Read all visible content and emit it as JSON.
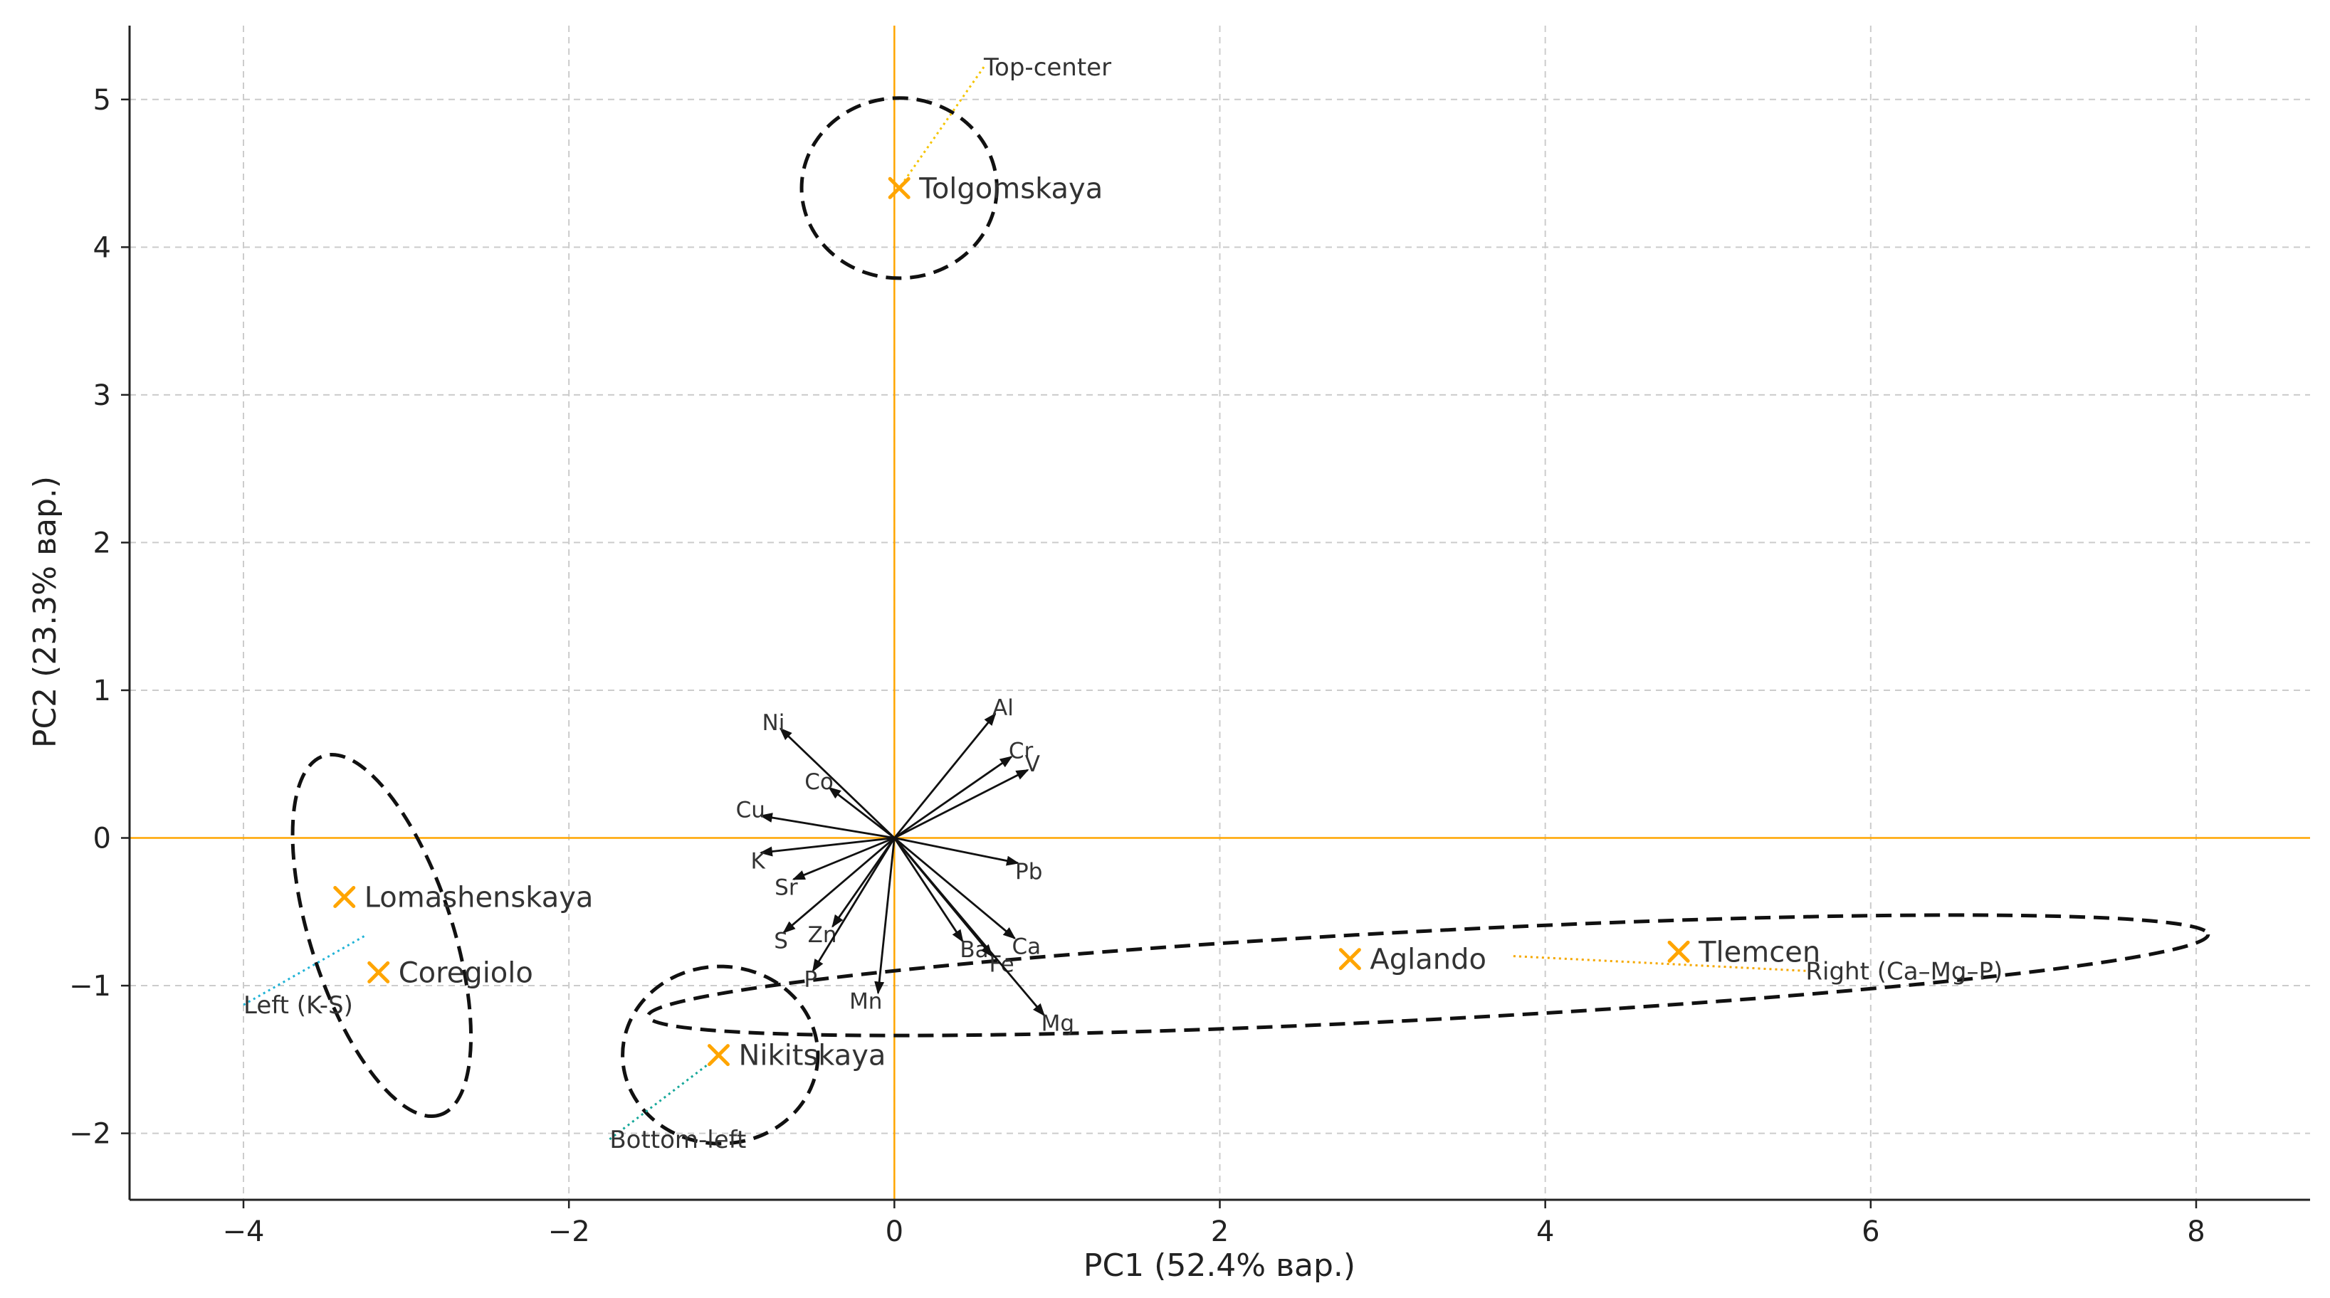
{
  "chart_data": {
    "type": "scatter",
    "xlabel": "PC1 (52.4% вар.)",
    "ylabel": "PC2 (23.3% вар.)",
    "xlim": [
      -4.7,
      8.7
    ],
    "ylim": [
      -2.45,
      5.5
    ],
    "xticks": [
      -4,
      -2,
      0,
      2,
      4,
      6,
      8
    ],
    "yticks": [
      -2,
      -1,
      0,
      1,
      2,
      3,
      4,
      5
    ],
    "grid": true,
    "origin_line_color": "#ffa500",
    "marker_color": "#ffa500",
    "samples": [
      {
        "name": "Tolgomskaya",
        "x": 0.03,
        "y": 4.4
      },
      {
        "name": "Lomashenskaya",
        "x": -3.38,
        "y": -0.4
      },
      {
        "name": "Coregiolo",
        "x": -3.17,
        "y": -0.91
      },
      {
        "name": "Nikitskaya",
        "x": -1.08,
        "y": -1.47
      },
      {
        "name": "Aglando",
        "x": 2.8,
        "y": -0.82
      },
      {
        "name": "Tlemcen",
        "x": 4.82,
        "y": -0.77
      }
    ],
    "loadings": [
      {
        "name": "Al",
        "x": 0.62,
        "y": 0.84
      },
      {
        "name": "Cr",
        "x": 0.72,
        "y": 0.55
      },
      {
        "name": "V",
        "x": 0.82,
        "y": 0.46
      },
      {
        "name": "Ni",
        "x": -0.7,
        "y": 0.74
      },
      {
        "name": "Co",
        "x": -0.4,
        "y": 0.34
      },
      {
        "name": "Cu",
        "x": -0.82,
        "y": 0.15
      },
      {
        "name": "K",
        "x": -0.82,
        "y": -0.1
      },
      {
        "name": "Pb",
        "x": 0.76,
        "y": -0.17
      },
      {
        "name": "Sr",
        "x": -0.62,
        "y": -0.28
      },
      {
        "name": "S",
        "x": -0.68,
        "y": -0.64
      },
      {
        "name": "Zn",
        "x": -0.38,
        "y": -0.6
      },
      {
        "name": "P",
        "x": -0.5,
        "y": -0.9
      },
      {
        "name": "Mn",
        "x": -0.1,
        "y": -1.05
      },
      {
        "name": "Ba",
        "x": 0.42,
        "y": -0.7
      },
      {
        "name": "Fe",
        "x": 0.6,
        "y": -0.8
      },
      {
        "name": "Ca",
        "x": 0.74,
        "y": -0.68
      },
      {
        "name": "Mg",
        "x": 0.92,
        "y": -1.2
      }
    ],
    "ellipses": [
      {
        "group": "Top-center",
        "cx": 0.03,
        "cy": 4.4,
        "rx": 0.6,
        "ry": 0.61,
        "angle": 0
      },
      {
        "group": "Left (K-S)",
        "cx": -3.15,
        "cy": -0.66,
        "rx": 1.16,
        "ry": 0.48,
        "angle": -72
      },
      {
        "group": "Bottom-left",
        "cx": -1.07,
        "cy": -1.47,
        "rx": 0.6,
        "ry": 0.6,
        "angle": 0
      },
      {
        "group": "Right (Ca–Mg–P)",
        "cx": 3.28,
        "cy": -0.93,
        "rx": 4.8,
        "ry": 0.3,
        "angle": 3
      }
    ],
    "annotations": [
      {
        "text": "Top-center",
        "x": 0.55,
        "y": 5.22,
        "x2": 0.03,
        "y2": 4.4,
        "color": "#f5c400"
      },
      {
        "text": "Left (K-S)",
        "x": -4.0,
        "y": -1.13,
        "x2": -3.25,
        "y2": -0.66,
        "color": "#21b3d6"
      },
      {
        "text": "Bottom-left",
        "x": -1.75,
        "y": -2.04,
        "x2": -1.07,
        "y2": -1.47,
        "color": "#17a89a"
      },
      {
        "text": "Right (Ca–Mg–P)",
        "x": 5.6,
        "y": -0.9,
        "x2": 3.8,
        "y2": -0.8,
        "color": "#f5a800"
      }
    ]
  }
}
